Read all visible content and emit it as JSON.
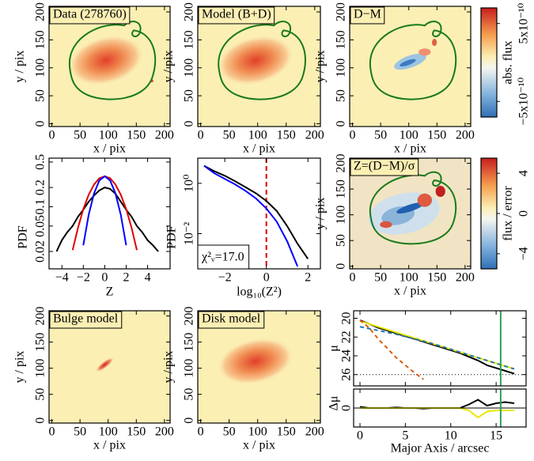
{
  "chart_data": [
    {
      "type": "image",
      "title": "Data (278760)",
      "xlabel": "x / pix",
      "ylabel": "y / pix",
      "xlim": [
        -5,
        210
      ],
      "ylim": [
        -5,
        210
      ],
      "xticks": [
        0,
        50,
        100,
        150,
        200
      ],
      "yticks": [
        0,
        50,
        100,
        150,
        200
      ]
    },
    {
      "type": "image",
      "title": "Model (B+D)",
      "xlabel": "x / pix",
      "ylabel": "y / pix",
      "xlim": [
        -5,
        210
      ],
      "ylim": [
        -5,
        210
      ],
      "xticks": [
        0,
        50,
        100,
        150,
        200
      ],
      "yticks": [
        0,
        50,
        100,
        150,
        200
      ]
    },
    {
      "type": "image",
      "title": "D−M",
      "xlabel": "x / pix",
      "ylabel": "y / pix",
      "xlim": [
        -5,
        210
      ],
      "ylim": [
        -5,
        210
      ],
      "xticks": [
        0,
        50,
        100,
        150,
        200
      ],
      "yticks": [
        0,
        50,
        100,
        150,
        200
      ]
    },
    {
      "type": "colorbar",
      "label": "abs. flux",
      "ylim": [
        -7e-10,
        7e-10
      ],
      "yticks": [
        {
          "value": -5e-10,
          "label": "−5x10⁻¹⁰"
        },
        {
          "value": 5e-10,
          "label": "5x10⁻¹⁰"
        }
      ]
    },
    {
      "type": "line",
      "xlabel": "Z",
      "ylabel": "PDF",
      "ylog": true,
      "xlim": [
        -5.2,
        6.1
      ],
      "ylim": [
        0.0107,
        0.575
      ],
      "xticks": [
        {
          "value": -4,
          "label": "−4"
        },
        {
          "value": -2,
          "label": "−2"
        },
        0,
        2,
        4
      ],
      "yticks": [
        0.02,
        0.05,
        0.1,
        0.2,
        0.5
      ],
      "x": [
        -5,
        -4.5,
        -4,
        -3.5,
        -3,
        -2.5,
        -2,
        -1.5,
        -1,
        -0.5,
        0,
        0.5,
        1,
        1.5,
        2,
        2.5,
        3,
        3.5,
        4,
        4.5,
        5
      ],
      "series": [
        {
          "color": "#000000",
          "values": [
            null,
            0.02,
            0.03,
            0.04,
            0.05,
            0.07,
            0.09,
            0.12,
            0.15,
            0.18,
            0.2,
            0.19,
            0.16,
            0.12,
            0.09,
            0.07,
            0.05,
            0.04,
            0.03,
            0.025,
            0.02
          ]
        },
        {
          "color": "#e00000",
          "values": [
            null,
            null,
            null,
            null,
            0.021,
            0.047,
            0.092,
            0.154,
            0.223,
            0.279,
            0.3,
            0.279,
            0.223,
            0.154,
            0.092,
            0.047,
            0.021,
            null,
            null,
            null,
            null
          ]
        },
        {
          "color": "#0000ff",
          "values": [
            null,
            null,
            null,
            null,
            null,
            null,
            0.025,
            0.075,
            0.162,
            0.257,
            0.3,
            0.257,
            0.162,
            0.075,
            0.025,
            null,
            null,
            null,
            null,
            null,
            null
          ]
        }
      ]
    },
    {
      "type": "line",
      "xlabel": "log₁₀(Z²)",
      "ylabel": "PDF",
      "ylog": true,
      "xlim": [
        -3.3,
        2.6
      ],
      "ylim": [
        0.0004,
        10
      ],
      "xticks": [
        {
          "value": -2,
          "label": "−2"
        },
        0,
        2
      ],
      "yticks": [
        {
          "value": 0.01,
          "label": "10⁻²"
        },
        {
          "value": 1,
          "label": "10⁰"
        }
      ],
      "vline": {
        "value": 0,
        "color": "#e00000"
      },
      "annotation": "χ²ᵥ=17.0",
      "x": [
        -3,
        -2.5,
        -2,
        -1.5,
        -1,
        -0.5,
        0,
        0.5,
        1,
        1.5,
        2
      ],
      "series": [
        {
          "color": "#000000",
          "values": [
            5,
            3,
            2,
            1.2,
            0.7,
            0.4,
            0.2,
            0.08,
            0.02,
            0.004,
            0.001
          ]
        },
        {
          "color": "#0000ff",
          "values": [
            5,
            2.5,
            1.5,
            0.9,
            0.5,
            0.25,
            0.1,
            0.03,
            0.005,
            0.0005,
            null
          ]
        }
      ]
    },
    {
      "type": "image",
      "title": "Z=(D−M)/σ",
      "xlabel": "x / pix",
      "ylabel": "y / pix",
      "xlim": [
        -5,
        210
      ],
      "ylim": [
        -5,
        210
      ],
      "xticks": [
        0,
        50,
        100,
        150,
        200
      ],
      "yticks": [
        0,
        50,
        100,
        150,
        200
      ]
    },
    {
      "type": "colorbar",
      "label": "flux / error",
      "ylim": [
        -5.5,
        5.5
      ],
      "yticks": [
        {
          "value": -4,
          "label": "−4"
        },
        0,
        4
      ]
    },
    {
      "type": "image",
      "title": "Bulge model",
      "xlabel": "x / pix",
      "ylabel": "y / pix",
      "xlim": [
        -5,
        210
      ],
      "ylim": [
        -5,
        210
      ],
      "xticks": [
        0,
        50,
        100,
        150,
        200
      ],
      "yticks": [
        0,
        50,
        100,
        150,
        200
      ]
    },
    {
      "type": "image",
      "title": "Disk model",
      "xlabel": "x / pix",
      "ylabel": "y / pix",
      "xlim": [
        -5,
        210
      ],
      "ylim": [
        -5,
        210
      ],
      "xticks": [
        0,
        50,
        100,
        150,
        200
      ],
      "yticks": [
        0,
        50,
        100,
        150,
        200
      ]
    },
    {
      "type": "profile",
      "xlabel": "Major Axis / arcsec",
      "ylabel": "μ",
      "xlim": [
        -0.7,
        18.3
      ],
      "ylim": [
        27.2,
        19.2
      ],
      "xticks": [
        0,
        5,
        10,
        15
      ],
      "yticks": [
        20,
        22,
        24,
        26
      ],
      "vline": {
        "value": 15.5,
        "color": "#2ca05a"
      },
      "x": [
        0,
        1,
        2,
        3,
        4,
        5,
        6,
        7,
        8,
        9,
        10,
        11,
        12,
        13,
        14,
        15,
        16,
        17
      ],
      "series": [
        {
          "color": "#000000",
          "values": [
            20.2,
            20.6,
            21.0,
            21.3,
            21.6,
            21.9,
            22.2,
            22.5,
            22.8,
            23.1,
            23.4,
            23.7,
            24.1,
            24.5,
            25.0,
            25.3,
            25.6,
            25.9
          ]
        },
        {
          "color": "#e8e800",
          "values": [
            20.3,
            20.6,
            20.9,
            21.2,
            21.5,
            21.8,
            22.1,
            22.4,
            22.7,
            23.0,
            23.3,
            23.6,
            23.9,
            24.2,
            24.5,
            24.8,
            25.1,
            25.4
          ]
        },
        {
          "color": "#d95f0e",
          "dashed": true,
          "values": [
            20.2,
            21.0,
            22.2,
            23.2,
            24.2,
            25.0,
            25.8,
            26.5,
            null,
            null,
            null,
            null,
            null,
            null,
            null,
            null,
            null,
            null
          ]
        },
        {
          "color": "#1f77b4",
          "dashed": true,
          "values": [
            20.9,
            21.1,
            21.3,
            21.5,
            21.7,
            21.95,
            22.2,
            22.45,
            22.7,
            23.0,
            23.3,
            23.6,
            23.9,
            24.2,
            24.5,
            24.8,
            25.1,
            25.4
          ]
        }
      ],
      "residual": {
        "ylabel": "Δμ",
        "ylim": [
          -1.6,
          1.6
        ],
        "yticks": [
          0
        ],
        "series": [
          {
            "color": "#000000",
            "values": [
              0.1,
              0,
              0,
              0,
              0.05,
              0,
              0,
              -0.05,
              0,
              0,
              0,
              0,
              0.3,
              0.7,
              0.2,
              0.4,
              0.5,
              0.4
            ]
          },
          {
            "color": "#e8e800",
            "values": [
              0,
              0,
              0,
              0,
              0,
              0,
              0,
              0,
              0,
              0,
              0,
              0,
              -0.2,
              -0.8,
              -0.3,
              -0.2,
              -0.2,
              -0.2
            ]
          }
        ]
      }
    }
  ]
}
